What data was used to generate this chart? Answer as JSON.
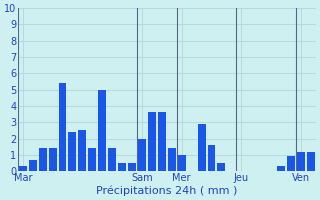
{
  "values": [
    0.3,
    0.7,
    1.4,
    1.4,
    5.4,
    2.4,
    2.5,
    1.4,
    5.0,
    1.4,
    0.5,
    0.5,
    2.0,
    3.6,
    3.6,
    1.4,
    1.0,
    0.0,
    2.9,
    1.6,
    0.5,
    0.0,
    0.0,
    0.0,
    0.0,
    0.0,
    0.3,
    0.9,
    1.2,
    1.2
  ],
  "day_labels": [
    "Mar",
    "Sam",
    "Mer",
    "Jeu",
    "Ven"
  ],
  "day_tick_positions": [
    1,
    13,
    17,
    23,
    29
  ],
  "day_vline_positions": [
    0.5,
    12.5,
    16.5,
    22.5,
    28.5
  ],
  "xlabel": "Précipitations 24h ( mm )",
  "ylim": [
    0,
    10
  ],
  "yticks": [
    0,
    1,
    2,
    3,
    4,
    5,
    6,
    7,
    8,
    9,
    10
  ],
  "bar_color": "#1a56e8",
  "bg_color": "#cef0f0",
  "grid_color": "#b0d8d8",
  "text_color": "#2244bb",
  "vline_color": "#556688",
  "label_fontsize": 8,
  "tick_fontsize": 7
}
